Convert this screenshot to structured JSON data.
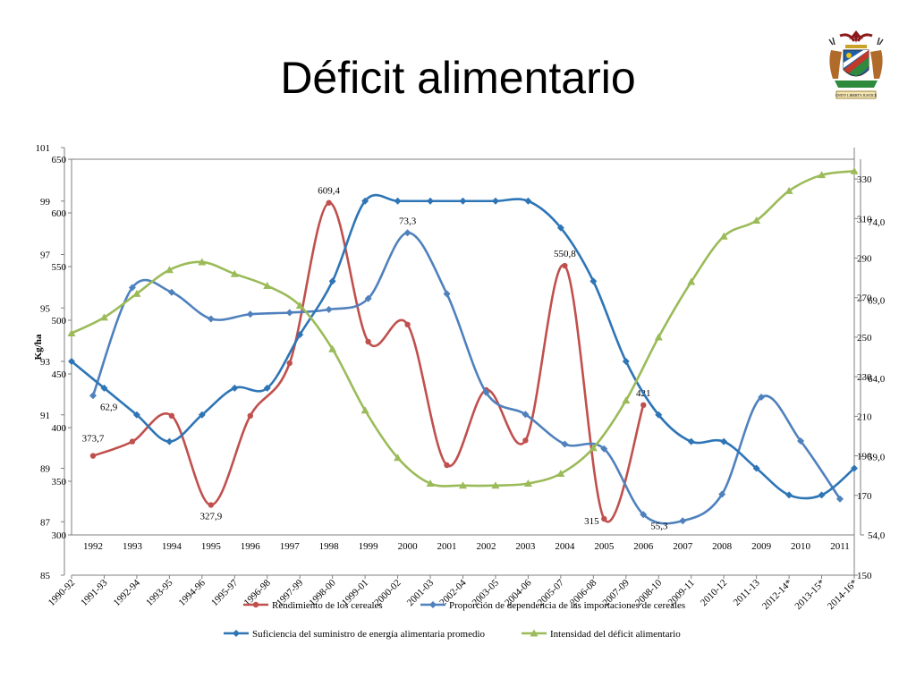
{
  "slide": {
    "title": "Déficit alimentario"
  },
  "emblem": {
    "icon": "namibia-coat-of-arms-icon",
    "motto": "UNITY LIBERTY JUSTICE"
  },
  "chart_data": {
    "type": "line",
    "layers": [
      {
        "name": "Rendimiento de los cereales",
        "axis": "left_a",
        "x": [
          "1992",
          "1993",
          "1994",
          "1995",
          "1996",
          "1997",
          "1998",
          "1999",
          "2000",
          "2001",
          "2002",
          "2003",
          "2004",
          "2005",
          "2006"
        ],
        "values": [
          373.7,
          387,
          411,
          327.9,
          411,
          460,
          609.4,
          480,
          496,
          365,
          435,
          388,
          550.8,
          315,
          421
        ],
        "color": "#C0504D",
        "marker": "circle",
        "labels": {
          "0": "373,7",
          "3": "327,9",
          "6": "609,4",
          "12": "550,8",
          "13": "315",
          "14": "421"
        }
      },
      {
        "name": "Proporción de dependencia de las importaciones de cereales",
        "axis": "right_b",
        "x": [
          "1992",
          "1993",
          "1994",
          "1995",
          "1996",
          "1997",
          "1998",
          "1999",
          "2000",
          "2001",
          "2002",
          "2003",
          "2004",
          "2005",
          "2006",
          "2007",
          "2008",
          "2009",
          "2010",
          "2011"
        ],
        "values": [
          62.9,
          69.8,
          69.5,
          67.8,
          68.1,
          68.2,
          68.4,
          69.1,
          73.3,
          69.4,
          63.1,
          61.7,
          59.8,
          59.5,
          55.3,
          54.9,
          56.6,
          62.8,
          60.0,
          56.3
        ],
        "color": "#4F81BD",
        "marker": "diamond",
        "labels": {
          "0": "62,9",
          "8": "73,3",
          "14": "55,3"
        }
      },
      {
        "name": "Suficiencia del suministro de energía alimentaria promedio",
        "axis": "left_b",
        "x": [
          "1990-92",
          "1991-93",
          "1992-94",
          "1993-95",
          "1994-96",
          "1995-97",
          "1996-98",
          "1997-99",
          "1998-00",
          "1999-01",
          "2000-02",
          "2001-03",
          "2002-04",
          "2003-05",
          "2004-06",
          "2005-07",
          "2006-08",
          "2007-09",
          "2008-10",
          "2009-11",
          "2010-12",
          "2011-13",
          "2012-14*",
          "2013-15*",
          "2014-16*"
        ],
        "values": [
          93,
          92,
          91,
          90,
          91,
          92,
          92,
          94,
          96,
          99,
          99,
          99,
          99,
          99,
          99,
          98,
          96,
          93,
          91,
          90,
          90,
          89,
          88,
          88,
          89
        ],
        "color": "#2E75B6",
        "marker": "diamond"
      },
      {
        "name": "Intensidad del déficit alimentario",
        "axis": "right_a",
        "x": [
          "1990-92",
          "1991-93",
          "1992-94",
          "1993-95",
          "1994-96",
          "1995-97",
          "1996-98",
          "1997-99",
          "1998-00",
          "1999-01",
          "2000-02",
          "2001-03",
          "2002-04",
          "2003-05",
          "2004-06",
          "2005-07",
          "2006-08",
          "2007-09",
          "2008-10",
          "2009-11",
          "2010-12",
          "2011-13",
          "2012-14*",
          "2013-15*",
          "2014-16*"
        ],
        "values": [
          252,
          260,
          272,
          284,
          288,
          282,
          276,
          266,
          244,
          213,
          189,
          176,
          175,
          175,
          176,
          181,
          194,
          218,
          250,
          278,
          301,
          309,
          324,
          332,
          334
        ],
        "color": "#9BBB59",
        "marker": "triangle"
      }
    ],
    "axes": {
      "left_a": {
        "label": "Kg/ha",
        "ylim": [
          300,
          650
        ],
        "ticks": [
          "300",
          "350",
          "400",
          "450",
          "500",
          "550",
          "600",
          "650"
        ]
      },
      "left_b": {
        "ylim": [
          85,
          101
        ],
        "ticks": [
          "85",
          "87",
          "89",
          "91",
          "93",
          "95",
          "97",
          "99",
          "101"
        ]
      },
      "right_a": {
        "ylim": [
          150,
          340
        ],
        "ticks": [
          "150",
          "170",
          "190",
          "210",
          "230",
          "250",
          "270",
          "290",
          "310",
          "330"
        ]
      },
      "right_b": {
        "ylim": [
          54,
          74
        ],
        "ticks": [
          "54,0",
          "59,0",
          "64,0",
          "69,0",
          "74,0"
        ]
      },
      "x_years": [
        "1992",
        "1993",
        "1994",
        "1995",
        "1996",
        "1997",
        "1998",
        "1999",
        "2000",
        "2001",
        "2002",
        "2003",
        "2004",
        "2005",
        "2006",
        "2007",
        "2008",
        "2009",
        "2010",
        "2011"
      ],
      "x_periods": [
        "1990-92",
        "1991-93",
        "1992-94",
        "1993-95",
        "1994-96",
        "1995-97",
        "1996-98",
        "1997-99",
        "1998-00",
        "1999-01",
        "2000-02",
        "2001-03",
        "2002-04",
        "2003-05",
        "2004-06",
        "2005-07",
        "2006-08",
        "2007-09",
        "2008-10",
        "2009-11",
        "2010-12",
        "2011-13",
        "2012-14*",
        "2013-15*",
        "2014-16*"
      ]
    },
    "grid": false,
    "legend": "bottom"
  }
}
